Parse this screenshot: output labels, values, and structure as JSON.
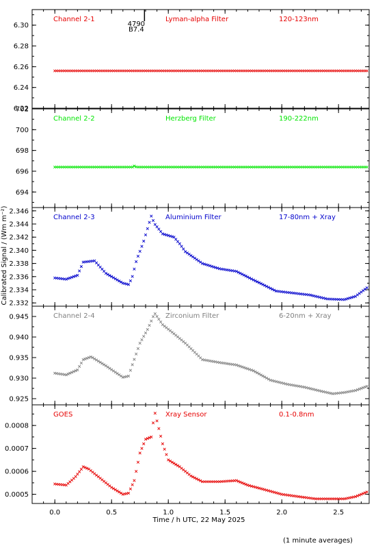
{
  "ylabel": "Calibrated Signal / (Wm m⁻²)",
  "xlabel": "Time / h UTC, 22 May 2025",
  "footnote": "(1 minute averages)",
  "marker": {
    "line1": "4790",
    "line2": "B7.4",
    "x": 0.79
  },
  "x_axis": {
    "xlim": [
      -0.2,
      2.77
    ],
    "ticks": [
      0.0,
      0.5,
      1.0,
      1.5,
      2.0,
      2.5
    ],
    "tick_labels": [
      "0.0",
      "0.5",
      "1.0",
      "1.5",
      "2.0",
      "2.5"
    ]
  },
  "chart_data": [
    {
      "type": "scatter",
      "panel": "Channel 2-1",
      "labels": [
        "Channel 2-1",
        "Lyman-alpha Filter",
        "120-123nm"
      ],
      "color": "#e60000",
      "ylim": [
        6.22,
        6.315
      ],
      "yticks": [
        6.22,
        6.24,
        6.26,
        6.28,
        6.3
      ],
      "ytick_labels": [
        "6.22",
        "6.24",
        "6.26",
        "6.28",
        "6.30"
      ],
      "xs": [
        0.0,
        2.75
      ],
      "ys": [
        6.256,
        6.256
      ]
    },
    {
      "type": "scatter",
      "panel": "Channel 2-2",
      "labels": [
        "Channel 2-2",
        "Herzberg Filter",
        "190-222nm"
      ],
      "color": "#00e600",
      "ylim": [
        692.5,
        702
      ],
      "yticks": [
        694,
        696,
        698,
        700,
        702
      ],
      "ytick_labels": [
        "694",
        "696",
        "698",
        "700",
        "702"
      ],
      "xs": [
        0.0,
        0.7,
        0.7,
        0.72,
        2.75
      ],
      "ys": [
        696.4,
        696.4,
        696.5,
        696.4,
        696.4
      ]
    },
    {
      "type": "scatter",
      "panel": "Channel 2-3",
      "labels": [
        "Channel 2-3",
        "Aluminium Filter",
        "17-80nm + Xray"
      ],
      "color": "#0000cc",
      "ylim": [
        2.3315,
        2.3465
      ],
      "yticks": [
        2.332,
        2.334,
        2.336,
        2.338,
        2.34,
        2.342,
        2.344,
        2.346
      ],
      "ytick_labels": [
        "2.332",
        "2.334",
        "2.336",
        "2.338",
        "2.340",
        "2.342",
        "2.344",
        "2.346"
      ],
      "xs": [
        0.0,
        0.1,
        0.2,
        0.25,
        0.35,
        0.45,
        0.6,
        0.65,
        0.68,
        0.72,
        0.78,
        0.85,
        0.88,
        0.95,
        1.05,
        1.1,
        1.15,
        1.3,
        1.45,
        1.6,
        1.75,
        1.95,
        2.1,
        2.25,
        2.35,
        2.4,
        2.55,
        2.65,
        2.75
      ],
      "ys": [
        2.3358,
        2.3356,
        2.3362,
        2.3382,
        2.3384,
        2.3365,
        2.335,
        2.3348,
        2.3358,
        2.3385,
        2.3412,
        2.3452,
        2.344,
        2.3425,
        2.342,
        2.341,
        2.3398,
        2.338,
        2.3372,
        2.3368,
        2.3355,
        2.3338,
        2.3335,
        2.3332,
        2.3328,
        2.3326,
        2.3325,
        2.333,
        2.3343
      ]
    },
    {
      "type": "scatter",
      "panel": "Channel 2-4",
      "labels": [
        "Channel 2-4",
        "Zirconium Filter",
        "6-20nm + Xray"
      ],
      "color": "#808080",
      "ylim": [
        0.9235,
        0.9475
      ],
      "yticks": [
        0.925,
        0.93,
        0.935,
        0.94,
        0.945
      ],
      "ytick_labels": [
        "0.925",
        "0.930",
        "0.935",
        "0.940",
        "0.945"
      ],
      "xs": [
        0.0,
        0.1,
        0.2,
        0.25,
        0.32,
        0.45,
        0.6,
        0.65,
        0.68,
        0.75,
        0.82,
        0.88,
        0.95,
        1.05,
        1.15,
        1.3,
        1.45,
        1.6,
        1.75,
        1.9,
        2.05,
        2.2,
        2.35,
        2.45,
        2.55,
        2.65,
        2.75
      ],
      "ys": [
        0.9312,
        0.9308,
        0.932,
        0.9345,
        0.9352,
        0.933,
        0.9302,
        0.9305,
        0.933,
        0.9385,
        0.942,
        0.9458,
        0.943,
        0.9408,
        0.9385,
        0.9345,
        0.9338,
        0.9332,
        0.9318,
        0.9295,
        0.9285,
        0.9278,
        0.9268,
        0.9262,
        0.9265,
        0.927,
        0.928
      ]
    },
    {
      "type": "scatter",
      "panel": "GOES",
      "labels": [
        "GOES",
        "Xray Sensor",
        "0.1-0.8nm"
      ],
      "color": "#e60000",
      "ylim": [
        0.00046,
        0.00089
      ],
      "yticks": [
        0.0005,
        0.0006,
        0.0007,
        0.0008
      ],
      "ytick_labels": [
        "0.0005",
        "0.0006",
        "0.0007",
        "0.0008"
      ],
      "xs": [
        0.0,
        0.1,
        0.18,
        0.25,
        0.3,
        0.4,
        0.5,
        0.6,
        0.65,
        0.7,
        0.75,
        0.8,
        0.85,
        0.88,
        0.92,
        0.95,
        1.0,
        1.1,
        1.2,
        1.3,
        1.45,
        1.6,
        1.7,
        1.85,
        2.0,
        2.15,
        2.3,
        2.4,
        2.55,
        2.65,
        2.75
      ],
      "ys": [
        0.000545,
        0.00054,
        0.000575,
        0.00062,
        0.00061,
        0.00057,
        0.00053,
        0.0005,
        0.000505,
        0.00056,
        0.00068,
        0.00074,
        0.00075,
        0.00086,
        0.00078,
        0.00072,
        0.00065,
        0.00062,
        0.00058,
        0.000555,
        0.000555,
        0.00056,
        0.00054,
        0.00052,
        0.0005,
        0.00049,
        0.00048,
        0.00048,
        0.00048,
        0.00049,
        0.00051
      ]
    }
  ]
}
